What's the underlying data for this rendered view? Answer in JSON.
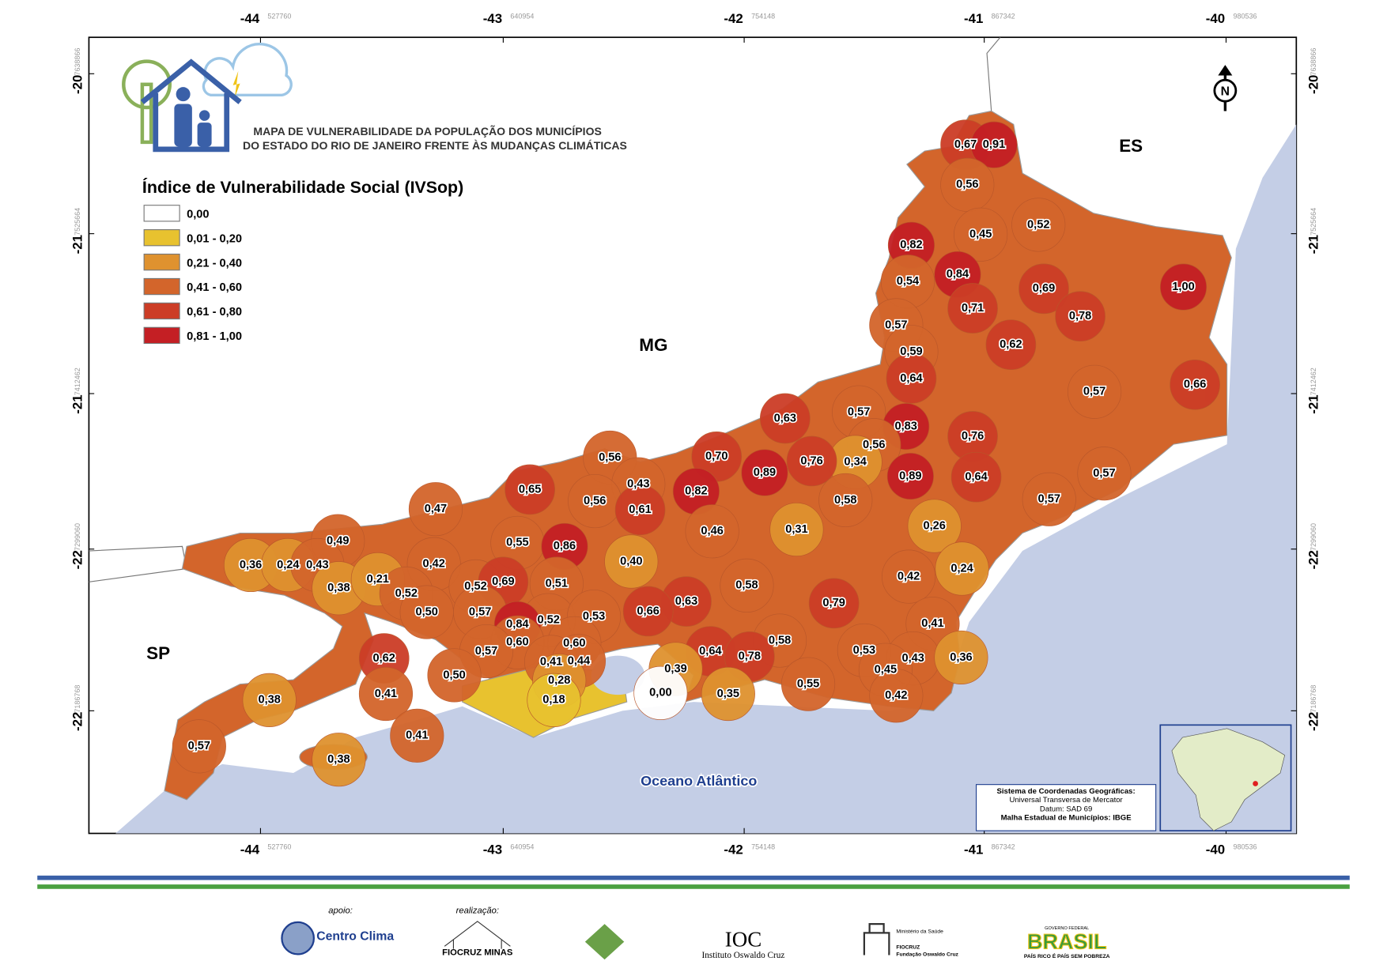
{
  "header": {
    "title_lines": [
      "MAPA DE VULNERABILIDADE DA POPULAÇÃO DOS MUNICÍPIOS",
      "DO ESTADO DO RIO DE JANEIRO FRENTE ÀS MUDANÇAS CLIMÁTICAS"
    ]
  },
  "legend": {
    "title": "Índice de Vulnerabilidade Social (IVSop)",
    "classes": [
      {
        "label": "0,00",
        "color": "#ffffff"
      },
      {
        "label": "0,01 - 0,20",
        "color": "#e8c22f"
      },
      {
        "label": "0,21 - 0,40",
        "color": "#df922f"
      },
      {
        "label": "0,41 - 0,60",
        "color": "#d3652b"
      },
      {
        "label": "0,61 - 0,80",
        "color": "#cc3d26"
      },
      {
        "label": "0,81 - 1,00",
        "color": "#c41f24"
      }
    ]
  },
  "regions": {
    "mg": "MG",
    "es": "ES",
    "sp": "SP",
    "ocean": "Oceano Atlântico"
  },
  "north": "N",
  "municipality_values": [
    "0,67",
    "0,91",
    "0,56",
    "0,45",
    "0,52",
    "0,82",
    "0,84",
    "0,54",
    "0,69",
    "1,00",
    "0,71",
    "0,78",
    "0,57",
    "0,62",
    "0,59",
    "0,64",
    "0,57",
    "0,66",
    "0,63",
    "0,57",
    "0,83",
    "0,76",
    "0,56",
    "0,34",
    "0,70",
    "0,89",
    "0,76",
    "0,56",
    "0,65",
    "0,43",
    "0,82",
    "0,89",
    "0,64",
    "0,57",
    "0,56",
    "0,61",
    "0,58",
    "0,57",
    "0,47",
    "0,46",
    "0,31",
    "0,26",
    "0,49",
    "0,55",
    "0,86",
    "0,40",
    "0,36",
    "0,24",
    "0,43",
    "0,42",
    "0,24",
    "0,38",
    "0,21",
    "0,52",
    "0,52",
    "0,69",
    "0,51",
    "0,58",
    "0,42",
    "0,79",
    "0,50",
    "0,57",
    "0,63",
    "0,66",
    "0,52",
    "0,53",
    "0,84",
    "0,41",
    "0,60",
    "0,60",
    "0,58",
    "0,62",
    "0,57",
    "0,64",
    "0,78",
    "0,53",
    "0,41",
    "0,44",
    "0,43",
    "0,36",
    "0,45",
    "0,39",
    "0,28",
    "0,50",
    "0,55",
    "0,00",
    "0,35",
    "0,42",
    "0,41",
    "0,38",
    "0,18",
    "0,41",
    "0,57",
    "0,38"
  ],
  "grid": {
    "lon_labels": [
      "-44",
      "-43",
      "-42",
      "-41",
      "-40"
    ],
    "lon_utm": [
      "527760",
      "640954",
      "754148",
      "867342",
      "980536"
    ],
    "lat_labels": [
      "-20",
      "-21",
      "-21",
      "-22",
      "-22"
    ],
    "lat_utm": [
      "7638866",
      "7525664",
      "7412462",
      "7299060",
      "7186768"
    ]
  },
  "projection_note": [
    "Sistema de Coordenadas Geográficas:",
    "Universal Transversa de Mercator",
    "Datum: SAD 69",
    "Malha Estadual de Municípios: IBGE"
  ],
  "footer": {
    "apoio": "apoio:",
    "realizacao": "realização:",
    "centro_clima": "Centro Clima",
    "fiocruz_minas": "FIOCRUZ MINAS",
    "ioc": "IOC",
    "ioc_name": "Instituto Oswaldo Cruz",
    "ministerio": "Ministério da Saúde",
    "fiocruz": "FIOCRUZ",
    "fiocruz_name": "Fundação Oswaldo Cruz",
    "gov": "GOVERNO FEDERAL",
    "brasil": "BRASIL",
    "slogan": "PAÍS RICO É PAÍS SEM POBREZA"
  }
}
